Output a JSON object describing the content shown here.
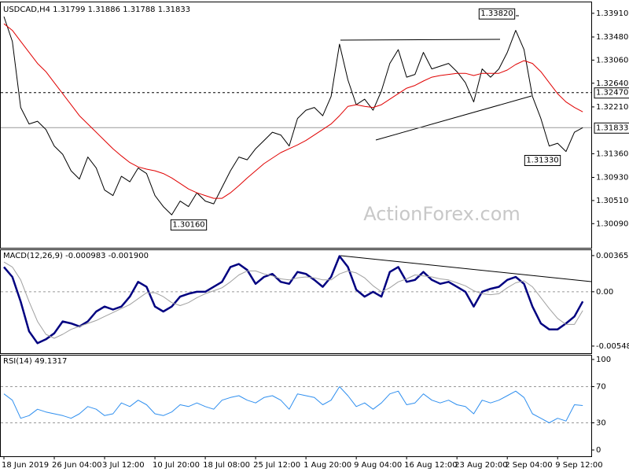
{
  "chart_data": [
    {
      "type": "line",
      "title": "USDCAD,H4  1.31799 1.31886 1.31788 1.31833",
      "watermark": "ActionForex.com",
      "ylim": [
        1.2968,
        1.3408
      ],
      "yticks": [
        {
          "value": 1.3391,
          "label": "1.33910"
        },
        {
          "value": 1.3348,
          "label": "1.33480"
        },
        {
          "value": 1.3306,
          "label": "1.33060"
        },
        {
          "value": 1.3264,
          "label": "1.32640"
        },
        {
          "value": 1.3221,
          "label": "1.32210"
        },
        {
          "value": 1.3136,
          "label": "1.31360"
        },
        {
          "value": 1.3093,
          "label": "1.30930"
        },
        {
          "value": 1.3051,
          "label": "1.30510"
        },
        {
          "value": 1.3009,
          "label": "1.30090"
        }
      ],
      "levels": [
        {
          "value": 1.3247,
          "label": "1.32470",
          "style": "dashed"
        },
        {
          "value": 1.31833,
          "label": "1.31833",
          "style": "solid"
        }
      ],
      "annotations": [
        {
          "value": 1.3382,
          "label": "1.33820"
        },
        {
          "value": 1.3133,
          "label": "1.31330"
        },
        {
          "value": 1.3016,
          "label": "1.30160"
        }
      ],
      "series": [
        {
          "color": "#000000",
          "line_width": 1,
          "values": [
            1.3385,
            1.334,
            1.322,
            1.319,
            1.3195,
            1.318,
            1.315,
            1.3135,
            1.3105,
            1.309,
            1.313,
            1.311,
            1.307,
            1.306,
            1.3095,
            1.3085,
            1.311,
            1.31,
            1.306,
            1.304,
            1.3025,
            1.305,
            1.304,
            1.3065,
            1.305,
            1.3045,
            1.3075,
            1.3105,
            1.313,
            1.3125,
            1.3145,
            1.316,
            1.3175,
            1.317,
            1.315,
            1.32,
            1.3215,
            1.322,
            1.3205,
            1.324,
            1.3335,
            1.327,
            1.3225,
            1.3235,
            1.3215,
            1.325,
            1.33,
            1.3325,
            1.3275,
            1.328,
            1.332,
            1.329,
            1.3295,
            1.33,
            1.3285,
            1.3265,
            1.323,
            1.329,
            1.3275,
            1.329,
            1.332,
            1.336,
            1.3325,
            1.324,
            1.32,
            1.315,
            1.3155,
            1.314,
            1.3175,
            1.31833
          ]
        },
        {
          "color": "#e00000",
          "line_width": 1,
          "values": [
            1.3372,
            1.336,
            1.334,
            1.332,
            1.33,
            1.3285,
            1.3265,
            1.3245,
            1.3225,
            1.3205,
            1.319,
            1.3175,
            1.316,
            1.3145,
            1.3132,
            1.312,
            1.3112,
            1.3108,
            1.3105,
            1.31,
            1.3092,
            1.3082,
            1.3072,
            1.3065,
            1.306,
            1.3055,
            1.3055,
            1.3065,
            1.3078,
            1.3092,
            1.3105,
            1.3118,
            1.3128,
            1.3138,
            1.3145,
            1.3152,
            1.316,
            1.317,
            1.318,
            1.319,
            1.3205,
            1.3222,
            1.3225,
            1.3222,
            1.322,
            1.3225,
            1.3235,
            1.3245,
            1.3255,
            1.326,
            1.3268,
            1.3275,
            1.3278,
            1.328,
            1.3282,
            1.3282,
            1.3278,
            1.3282,
            1.3282,
            1.3282,
            1.3288,
            1.3298,
            1.3305,
            1.33,
            1.3285,
            1.3265,
            1.3245,
            1.323,
            1.322,
            1.3212
          ]
        }
      ]
    },
    {
      "type": "line",
      "title": "MACD(12,26,9) -0.000983 -0.001900",
      "ylim": [
        -0.00613,
        0.0042
      ],
      "yticks": [
        {
          "value": 0.003651,
          "label": "0.003651"
        },
        {
          "value": 0,
          "label": "0.00"
        },
        {
          "value": -0.005489,
          "label": "-0.005489"
        }
      ],
      "levels": [
        0
      ],
      "series": [
        {
          "color": "#000080",
          "line_width": 2.5,
          "values": [
            0.0025,
            0.0015,
            -0.001,
            -0.004,
            -0.0052,
            -0.0048,
            -0.0042,
            -0.003,
            -0.0032,
            -0.0035,
            -0.003,
            -0.002,
            -0.0015,
            -0.0018,
            -0.0015,
            -0.0005,
            0.001,
            0.0005,
            -0.0015,
            -0.002,
            -0.0015,
            -0.0005,
            -0.0002,
            0.0,
            0.0,
            0.0005,
            0.001,
            0.0025,
            0.0028,
            0.0022,
            0.0008,
            0.0015,
            0.0018,
            0.001,
            0.0008,
            0.002,
            0.0018,
            0.0012,
            0.0005,
            0.0015,
            0.0036,
            0.0025,
            0.0002,
            -0.0005,
            0.0,
            -0.0005,
            0.002,
            0.0025,
            0.001,
            0.0012,
            0.002,
            0.0012,
            0.0008,
            0.001,
            0.0005,
            0.0,
            -0.0015,
            0.0,
            0.0003,
            0.0005,
            0.0012,
            0.0015,
            0.0008,
            -0.0015,
            -0.0032,
            -0.0038,
            -0.0038,
            -0.0032,
            -0.0025,
            -0.000983
          ]
        },
        {
          "color": "#a0a0a0",
          "line_width": 1,
          "values": [
            0.003,
            0.0025,
            0.0012,
            -0.001,
            -0.003,
            -0.0043,
            -0.0047,
            -0.0043,
            -0.0038,
            -0.0035,
            -0.0032,
            -0.0029,
            -0.0025,
            -0.0021,
            -0.0017,
            -0.0013,
            -0.0007,
            -0.0001,
            -0.0001,
            -0.0005,
            -0.0011,
            -0.0014,
            -0.0011,
            -0.0006,
            -0.0002,
            0.0001,
            0.0004,
            0.001,
            0.0017,
            0.0021,
            0.0021,
            0.0018,
            0.0016,
            0.0013,
            0.0012,
            0.0014,
            0.0015,
            0.0014,
            0.0012,
            0.0012,
            0.0018,
            0.0021,
            0.0019,
            0.0014,
            0.0006,
            0.0,
            0.0004,
            0.001,
            0.0013,
            0.0017,
            0.0016,
            0.0015,
            0.0013,
            0.0012,
            0.0009,
            0.0006,
            0.0001,
            -0.0002,
            -0.0003,
            -0.0002,
            0.0004,
            0.0009,
            0.0011,
            0.0005,
            -0.0006,
            -0.0017,
            -0.0027,
            -0.0033,
            -0.0033,
            -0.0019
          ]
        }
      ]
    },
    {
      "type": "line",
      "title": "RSI(14) 49.1317",
      "ylim": [
        -5.2,
        104.3
      ],
      "yticks": [
        100,
        70,
        30,
        0
      ],
      "levels": [
        70,
        30
      ],
      "categories": [
        "18 Jun 2019",
        null,
        null,
        null,
        null,
        null,
        "26 Jun 04:00",
        null,
        null,
        null,
        null,
        null,
        "3 Jul 12:00",
        null,
        null,
        null,
        null,
        null,
        "10 Jul 20:00",
        null,
        null,
        null,
        null,
        null,
        "18 Jul 08:00",
        null,
        null,
        null,
        null,
        null,
        "25 Jul 12:00",
        null,
        null,
        null,
        null,
        null,
        "1 Aug 20:00",
        null,
        null,
        null,
        null,
        null,
        "9 Aug 04:00",
        null,
        null,
        null,
        null,
        null,
        "16 Aug 12:00",
        null,
        null,
        null,
        null,
        null,
        "23 Aug 20:00",
        null,
        null,
        null,
        null,
        null,
        "2 Sep 04:00",
        null,
        null,
        null,
        null,
        null,
        "9 Sep 12:00",
        null,
        null,
        null
      ],
      "series": [
        {
          "color": "#2f8fef",
          "line_width": 1,
          "values": [
            62,
            55,
            35,
            38,
            45,
            42,
            40,
            38,
            35,
            40,
            48,
            45,
            38,
            40,
            52,
            48,
            55,
            50,
            40,
            38,
            42,
            50,
            48,
            52,
            48,
            45,
            55,
            58,
            60,
            55,
            52,
            58,
            60,
            55,
            45,
            62,
            60,
            58,
            50,
            55,
            70,
            60,
            48,
            52,
            45,
            52,
            62,
            65,
            50,
            52,
            62,
            55,
            52,
            55,
            50,
            48,
            40,
            55,
            52,
            55,
            60,
            65,
            58,
            40,
            35,
            30,
            35,
            32,
            50,
            49.1317
          ]
        }
      ]
    }
  ]
}
